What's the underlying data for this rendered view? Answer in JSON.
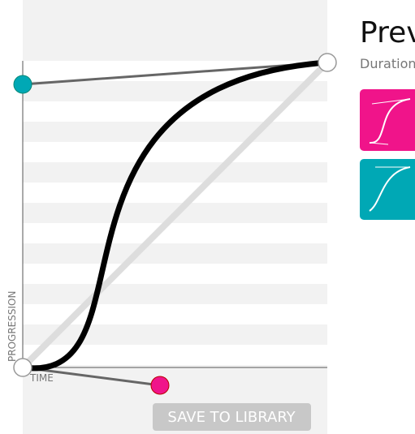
{
  "editor": {
    "y_axis_label": "PROGRESSION",
    "x_axis_label": "TIME",
    "save_button": "SAVE TO LIBRARY"
  },
  "preview": {
    "title": "Prev",
    "duration_label": "Duration"
  }
}
